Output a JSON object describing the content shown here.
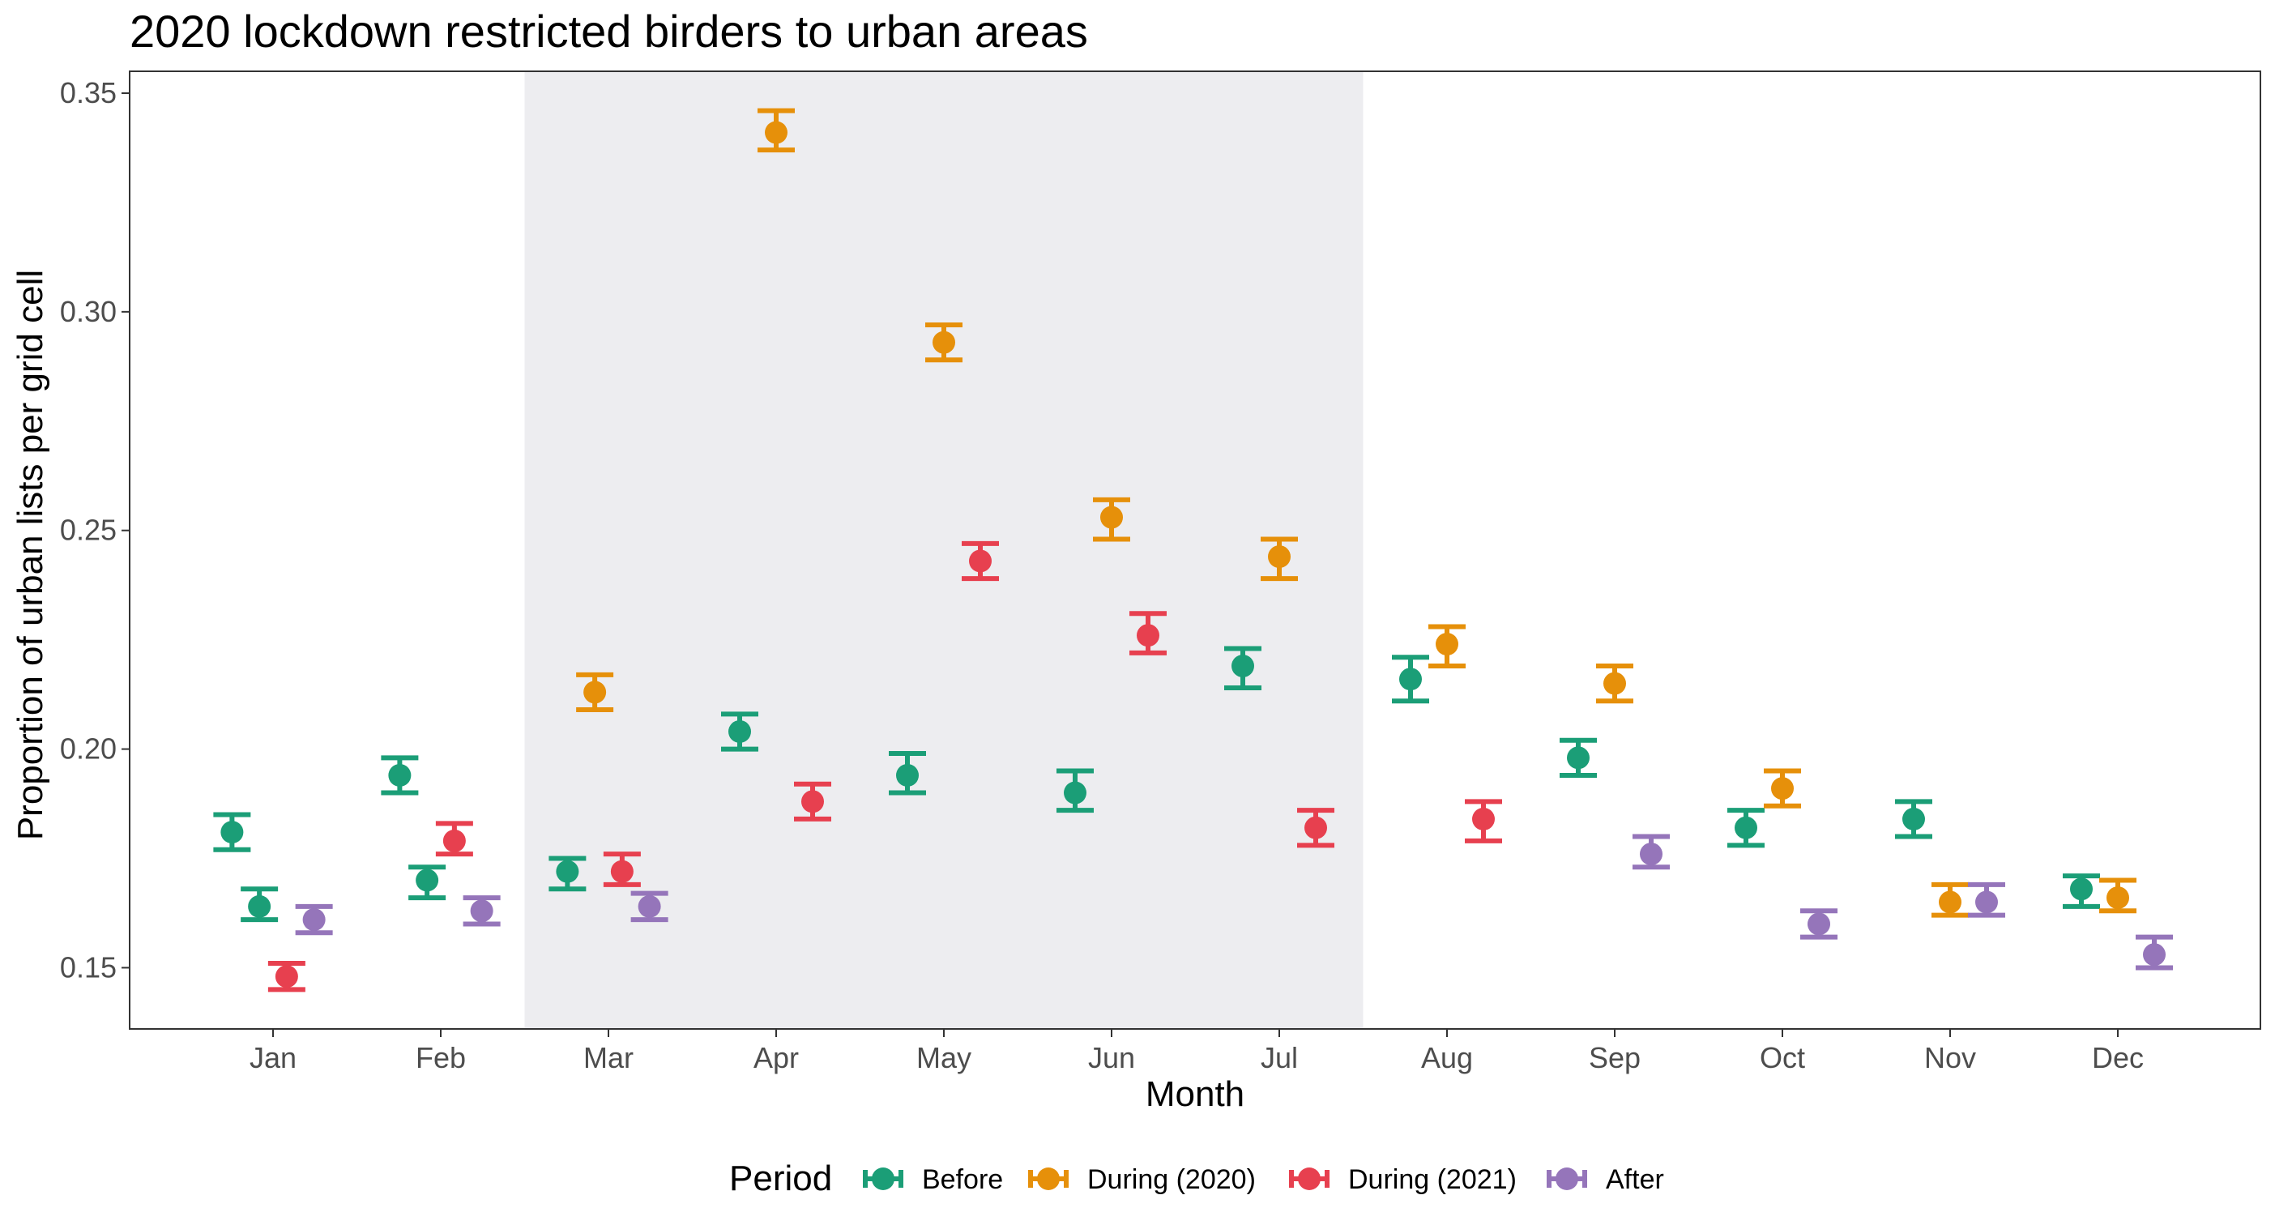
{
  "chart_data": {
    "type": "scatter",
    "title": "2020 lockdown restricted birders to urban areas",
    "xlabel": "Month",
    "ylabel": "Proportion of urban lists per grid cell",
    "categories": [
      "Jan",
      "Feb",
      "Mar",
      "Apr",
      "May",
      "Jun",
      "Jul",
      "Aug",
      "Sep",
      "Oct",
      "Nov",
      "Dec"
    ],
    "ylim": [
      0.136,
      0.355
    ],
    "yticks": [
      0.15,
      0.2,
      0.25,
      0.3,
      0.35
    ],
    "ytick_labels": [
      "0.15",
      "0.20",
      "0.25",
      "0.30",
      "0.35"
    ],
    "shaded_region": {
      "from": "Mar",
      "to": "Jul",
      "color": "#ededf0"
    },
    "grid": false,
    "legend": {
      "title": "Period",
      "position": "bottom"
    },
    "error_bars": true,
    "series": [
      {
        "name": "Before",
        "color": "#1b9e77",
        "points": [
          {
            "x": "Jan",
            "y": 0.181,
            "low": 0.177,
            "high": 0.185
          },
          {
            "x": "Jan",
            "y": 0.164,
            "low": 0.161,
            "high": 0.168
          },
          {
            "x": "Feb",
            "y": 0.194,
            "low": 0.19,
            "high": 0.198
          },
          {
            "x": "Feb",
            "y": 0.17,
            "low": 0.166,
            "high": 0.173
          },
          {
            "x": "Mar",
            "y": 0.172,
            "low": 0.168,
            "high": 0.175
          },
          {
            "x": "Apr",
            "y": 0.204,
            "low": 0.2,
            "high": 0.208
          },
          {
            "x": "May",
            "y": 0.194,
            "low": 0.19,
            "high": 0.199
          },
          {
            "x": "Jun",
            "y": 0.19,
            "low": 0.186,
            "high": 0.195
          },
          {
            "x": "Jul",
            "y": 0.219,
            "low": 0.214,
            "high": 0.223
          },
          {
            "x": "Aug",
            "y": 0.216,
            "low": 0.211,
            "high": 0.221
          },
          {
            "x": "Sep",
            "y": 0.198,
            "low": 0.194,
            "high": 0.202
          },
          {
            "x": "Oct",
            "y": 0.182,
            "low": 0.178,
            "high": 0.186
          },
          {
            "x": "Nov",
            "y": 0.184,
            "low": 0.18,
            "high": 0.188
          },
          {
            "x": "Dec",
            "y": 0.168,
            "low": 0.164,
            "high": 0.171
          }
        ]
      },
      {
        "name": "During (2020)",
        "color": "#e6900a",
        "points": [
          {
            "x": "Mar",
            "y": 0.213,
            "low": 0.209,
            "high": 0.217
          },
          {
            "x": "Apr",
            "y": 0.341,
            "low": 0.337,
            "high": 0.346
          },
          {
            "x": "May",
            "y": 0.293,
            "low": 0.289,
            "high": 0.297
          },
          {
            "x": "Jun",
            "y": 0.253,
            "low": 0.248,
            "high": 0.257
          },
          {
            "x": "Jul",
            "y": 0.244,
            "low": 0.239,
            "high": 0.248
          },
          {
            "x": "Aug",
            "y": 0.224,
            "low": 0.219,
            "high": 0.228
          },
          {
            "x": "Sep",
            "y": 0.215,
            "low": 0.211,
            "high": 0.219
          },
          {
            "x": "Oct",
            "y": 0.191,
            "low": 0.187,
            "high": 0.195
          },
          {
            "x": "Nov",
            "y": 0.165,
            "low": 0.162,
            "high": 0.169
          },
          {
            "x": "Dec",
            "y": 0.166,
            "low": 0.163,
            "high": 0.17
          }
        ]
      },
      {
        "name": "During (2021)",
        "color": "#e7404f",
        "points": [
          {
            "x": "Jan",
            "y": 0.148,
            "low": 0.145,
            "high": 0.151
          },
          {
            "x": "Feb",
            "y": 0.179,
            "low": 0.176,
            "high": 0.183
          },
          {
            "x": "Mar",
            "y": 0.172,
            "low": 0.169,
            "high": 0.176
          },
          {
            "x": "Apr",
            "y": 0.188,
            "low": 0.184,
            "high": 0.192
          },
          {
            "x": "May",
            "y": 0.243,
            "low": 0.239,
            "high": 0.247
          },
          {
            "x": "Jun",
            "y": 0.226,
            "low": 0.222,
            "high": 0.231
          },
          {
            "x": "Jul",
            "y": 0.182,
            "low": 0.178,
            "high": 0.186
          },
          {
            "x": "Aug",
            "y": 0.184,
            "low": 0.179,
            "high": 0.188
          }
        ]
      },
      {
        "name": "After",
        "color": "#9575ba",
        "points": [
          {
            "x": "Jan",
            "y": 0.161,
            "low": 0.158,
            "high": 0.164
          },
          {
            "x": "Feb",
            "y": 0.163,
            "low": 0.16,
            "high": 0.166
          },
          {
            "x": "Mar",
            "y": 0.164,
            "low": 0.161,
            "high": 0.167
          },
          {
            "x": "Sep",
            "y": 0.176,
            "low": 0.173,
            "high": 0.18
          },
          {
            "x": "Oct",
            "y": 0.16,
            "low": 0.157,
            "high": 0.163
          },
          {
            "x": "Nov",
            "y": 0.165,
            "low": 0.162,
            "high": 0.169
          },
          {
            "x": "Dec",
            "y": 0.153,
            "low": 0.15,
            "high": 0.157
          }
        ]
      }
    ]
  }
}
